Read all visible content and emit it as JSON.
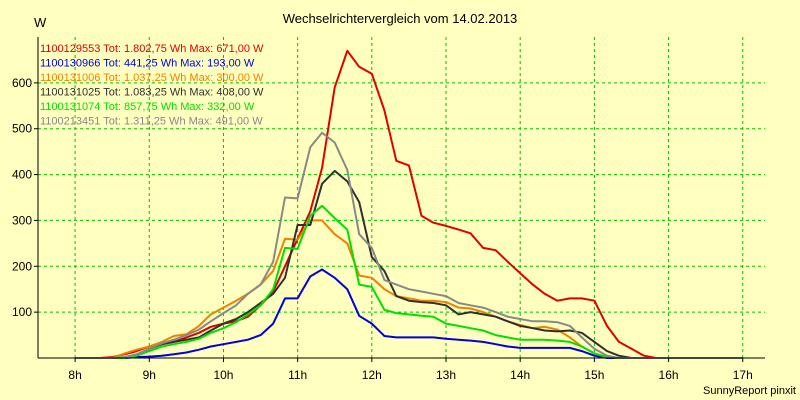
{
  "chart_data": {
    "type": "line",
    "title": "Wechselrichtervergleich vom 14.02.2013",
    "ylabel": "W",
    "credit": "SunnyReport pinxit",
    "xlim": [
      7.5,
      17.3
    ],
    "ylim": [
      0,
      700
    ],
    "x_ticks": [
      8,
      9,
      10,
      11,
      12,
      13,
      14,
      15,
      16,
      17
    ],
    "x_tick_labels": [
      "8h",
      "9h",
      "10h",
      "11h",
      "12h",
      "13h",
      "14h",
      "15h",
      "16h",
      "17h"
    ],
    "y_ticks": [
      100,
      200,
      300,
      400,
      500,
      600
    ],
    "y_tick_labels": [
      "100",
      "200",
      "300",
      "400",
      "500",
      "600"
    ],
    "grid": true,
    "legend_position": "top-left",
    "x": [
      8.0,
      8.17,
      8.33,
      8.5,
      8.67,
      8.83,
      9.0,
      9.17,
      9.33,
      9.5,
      9.67,
      9.83,
      10.0,
      10.17,
      10.33,
      10.5,
      10.67,
      10.83,
      11.0,
      11.17,
      11.33,
      11.5,
      11.67,
      11.83,
      12.0,
      12.17,
      12.33,
      12.5,
      12.67,
      12.83,
      13.0,
      13.17,
      13.33,
      13.5,
      13.67,
      13.83,
      14.0,
      14.17,
      14.33,
      14.5,
      14.67,
      14.83,
      15.0,
      15.17,
      15.33,
      15.5,
      15.67,
      15.83,
      16.0,
      16.17,
      16.33,
      16.5,
      16.67,
      16.83,
      17.0
    ],
    "series": [
      {
        "name": "1100129553",
        "legend": "1100129553 Tot: 1.802,75 Wh Max: 671,00 W",
        "color": "#e00000",
        "values": [
          0,
          0,
          0,
          2,
          8,
          15,
          25,
          30,
          35,
          45,
          55,
          68,
          75,
          80,
          90,
          115,
          145,
          200,
          260,
          320,
          415,
          590,
          670,
          635,
          620,
          540,
          430,
          420,
          310,
          295,
          288,
          280,
          272,
          240,
          235,
          210,
          185,
          160,
          140,
          125,
          130,
          130,
          125,
          70,
          35,
          20,
          5,
          0,
          0,
          0,
          0,
          0,
          0,
          0,
          0
        ]
      },
      {
        "name": "1100130966",
        "legend": "1100130966 Tot: 441,25 Wh Max: 193,00 W",
        "color": "#0000e0",
        "values": [
          0,
          0,
          0,
          0,
          0,
          2,
          3,
          5,
          8,
          12,
          18,
          25,
          30,
          35,
          40,
          50,
          75,
          130,
          130,
          178,
          193,
          175,
          150,
          92,
          75,
          48,
          45,
          45,
          45,
          45,
          42,
          40,
          38,
          35,
          30,
          25,
          22,
          22,
          22,
          22,
          22,
          15,
          5,
          0,
          0,
          0,
          0,
          0,
          0,
          0,
          0,
          0,
          0,
          0,
          0
        ]
      },
      {
        "name": "1100131006",
        "legend": "1100131006 Tot: 1.037,25 Wh Max: 300,00 W",
        "color": "#f08000",
        "values": [
          0,
          0,
          0,
          0,
          10,
          18,
          25,
          35,
          48,
          52,
          70,
          95,
          110,
          125,
          140,
          160,
          190,
          260,
          258,
          300,
          300,
          270,
          250,
          180,
          175,
          150,
          135,
          130,
          125,
          125,
          122,
          110,
          108,
          100,
          90,
          80,
          72,
          65,
          68,
          62,
          45,
          25,
          10,
          2,
          0,
          0,
          0,
          0,
          0,
          0,
          0,
          0,
          0,
          0,
          0
        ]
      },
      {
        "name": "1100131025",
        "legend": "1100131025 Tot: 1.083,25 Wh Max: 408,00 W",
        "color": "#303030",
        "values": [
          0,
          0,
          0,
          0,
          0,
          5,
          20,
          30,
          35,
          40,
          45,
          60,
          75,
          85,
          100,
          120,
          140,
          175,
          290,
          290,
          380,
          408,
          385,
          340,
          220,
          190,
          135,
          125,
          122,
          120,
          115,
          95,
          100,
          95,
          90,
          80,
          70,
          65,
          60,
          58,
          60,
          55,
          35,
          15,
          5,
          0,
          0,
          0,
          0,
          0,
          0,
          0,
          0,
          0,
          0
        ]
      },
      {
        "name": "1100131074",
        "legend": "1100131074 Tot: 857,75 Wh Max: 332,00 W",
        "color": "#00e000",
        "values": [
          0,
          0,
          0,
          0,
          0,
          5,
          15,
          25,
          30,
          35,
          42,
          55,
          65,
          78,
          95,
          115,
          150,
          240,
          238,
          310,
          332,
          305,
          280,
          160,
          155,
          105,
          98,
          95,
          92,
          90,
          75,
          70,
          65,
          60,
          50,
          45,
          40,
          40,
          40,
          38,
          35,
          25,
          10,
          2,
          0,
          0,
          0,
          0,
          0,
          0,
          0,
          0,
          0,
          0,
          0
        ]
      },
      {
        "name": "1100213451",
        "legend": "1100213451 Tot: 1.311,25 Wh Max: 491,00 W",
        "color": "#888888",
        "values": [
          0,
          0,
          0,
          0,
          2,
          8,
          20,
          32,
          40,
          50,
          62,
          80,
          98,
          115,
          140,
          160,
          210,
          350,
          348,
          460,
          491,
          470,
          410,
          270,
          240,
          170,
          160,
          150,
          145,
          140,
          135,
          120,
          115,
          110,
          100,
          90,
          85,
          80,
          80,
          78,
          70,
          45,
          20,
          5,
          0,
          0,
          0,
          0,
          0,
          0,
          0,
          0,
          0,
          0,
          0
        ]
      }
    ]
  }
}
